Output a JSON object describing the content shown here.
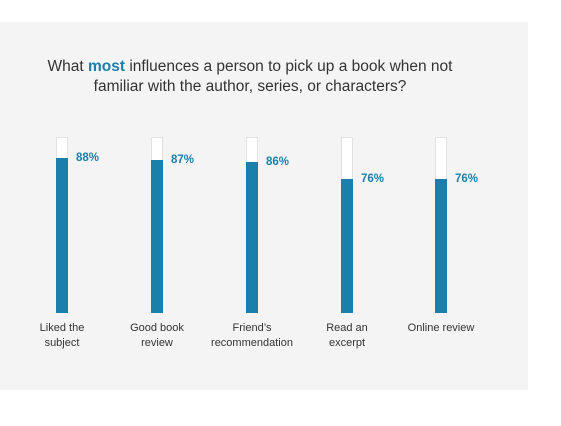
{
  "chart_data": {
    "type": "bar",
    "title_parts": [
      "What ",
      "most",
      " influences a person to pick up a book when not familiar with the author, series, or characters?"
    ],
    "categories": [
      "Liked the subject",
      "Good book review",
      "Friend’s recommendation",
      "Read an excerpt",
      "Online review"
    ],
    "values": [
      88,
      87,
      86,
      76,
      76
    ],
    "value_labels": [
      "88%",
      "87%",
      "86%",
      "76%",
      "76%"
    ],
    "color": "#1a7fab",
    "ylim": [
      0,
      100
    ]
  }
}
